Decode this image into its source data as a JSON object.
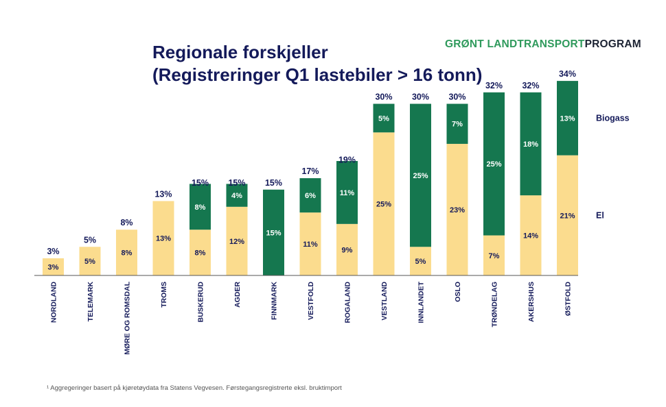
{
  "title": "Regionale forskjeller\n(Registreringer Q1 lastebiler > 16 tonn)",
  "brand": {
    "part1": "GRØNT ",
    "part2": "LANDTRANSPORT",
    "part3": "PROGRAM"
  },
  "footnote": "¹ Aggregeringer basert på kjøretøydata fra Statens Vegvesen. Førstegangsregistrerte eksl. bruktimport",
  "colors": {
    "el": "#fbdc8e",
    "biogass": "#15774f",
    "text": "#141a5a"
  },
  "chart_data": {
    "type": "bar",
    "stacked": true,
    "categories": [
      "NORDLAND",
      "TELEMARK",
      "MØRE OG ROMSDAL",
      "TROMS",
      "BUSKERUD",
      "AGDER",
      "FINNMARK",
      "VESTFOLD",
      "ROGALAND",
      "VESTLAND",
      "INNLANDET",
      "OSLO",
      "TRØNDELAG",
      "AKERSHUS",
      "ØSTFOLD"
    ],
    "series": [
      {
        "name": "El",
        "values": [
          3,
          5,
          8,
          13,
          8,
          12,
          0,
          11,
          9,
          25,
          5,
          23,
          7,
          14,
          21
        ],
        "labels": [
          "3%",
          "5%",
          "8%",
          "13%",
          "8%",
          "12%",
          "",
          "11%",
          "9%",
          "25%",
          "5%",
          "23%",
          "7%",
          "14%",
          "21%"
        ]
      },
      {
        "name": "Biogass",
        "values": [
          0,
          0,
          0,
          0,
          8,
          4,
          15,
          6,
          11,
          5,
          25,
          7,
          25,
          18,
          13
        ],
        "labels": [
          "",
          "",
          "",
          "",
          "8%",
          "4%",
          "15%",
          "6%",
          "11%",
          "5%",
          "25%",
          "7%",
          "25%",
          "18%",
          "13%"
        ]
      }
    ],
    "totals": [
      3,
      5,
      8,
      13,
      15,
      15,
      15,
      17,
      19,
      30,
      30,
      30,
      32,
      32,
      34
    ],
    "total_labels": [
      "3%",
      "5%",
      "8%",
      "13%",
      "15%",
      "15%",
      "15%",
      "17%",
      "19%",
      "30%",
      "30%",
      "30%",
      "32%",
      "32%",
      "34%"
    ],
    "legend": "right",
    "ylim": [
      0,
      34
    ]
  }
}
